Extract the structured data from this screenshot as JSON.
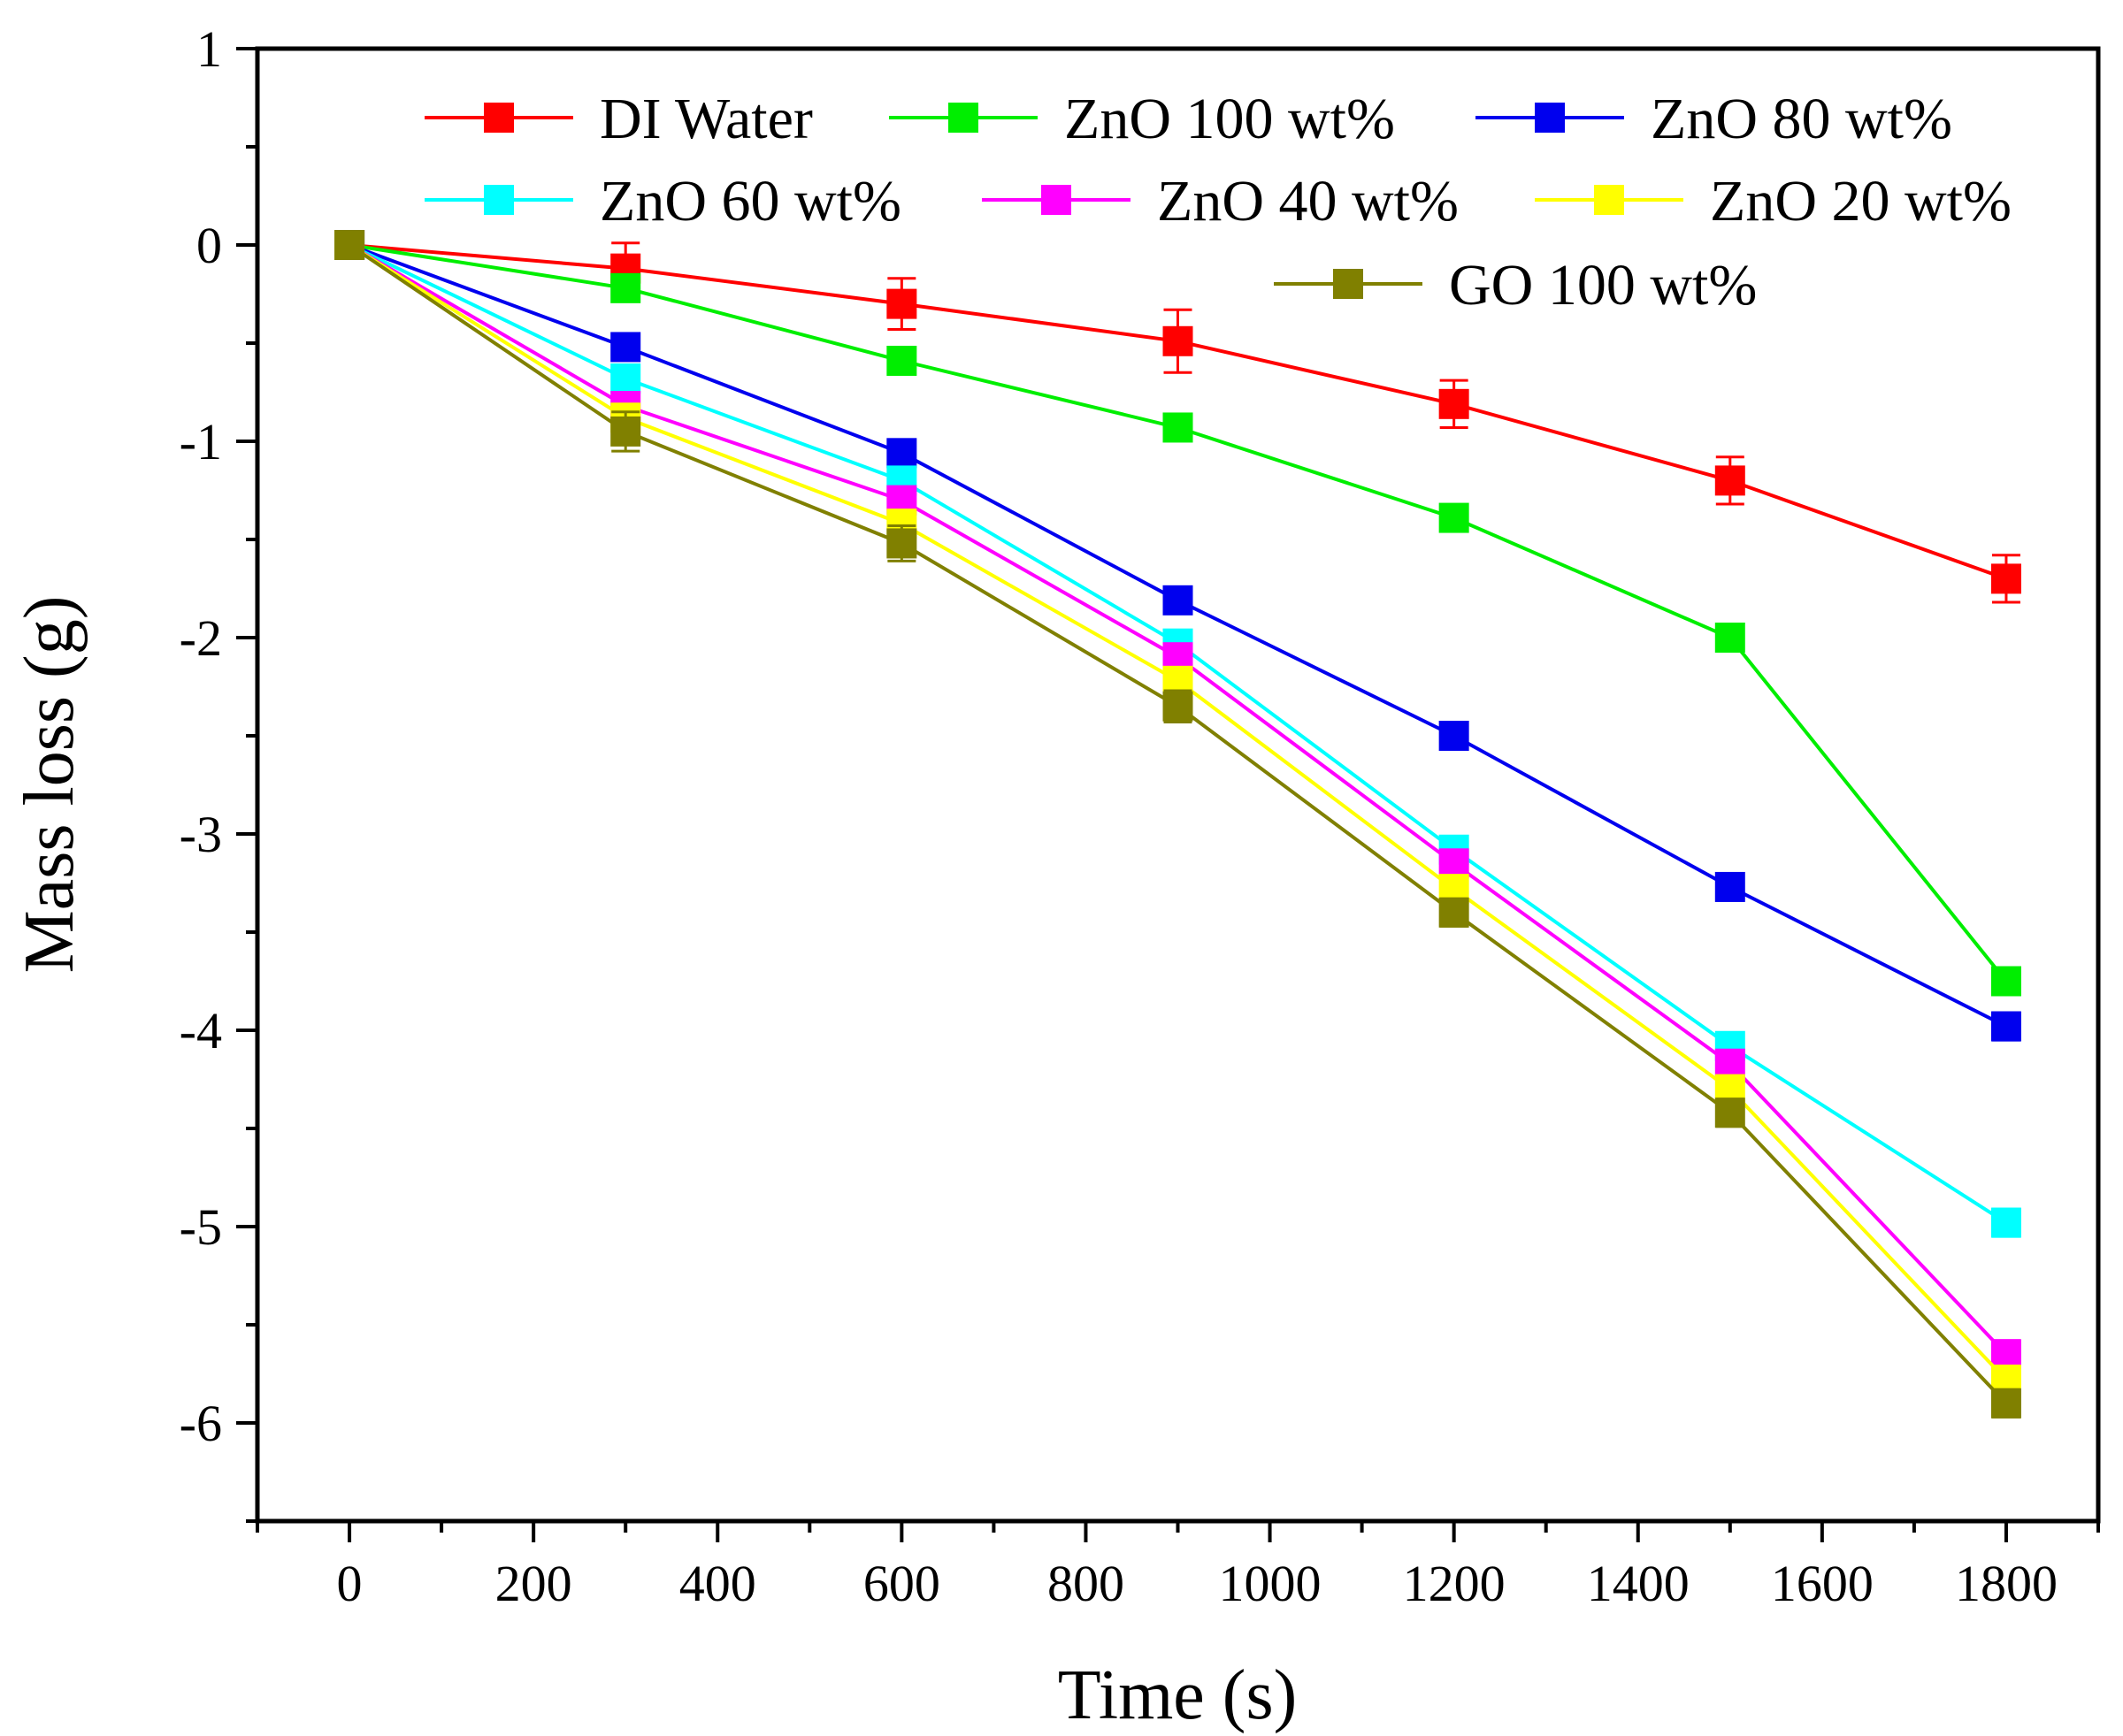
{
  "chart_data": {
    "type": "line",
    "title": "",
    "xlabel": "Time (s)",
    "ylabel": "Mass loss (g)",
    "xlim": [
      -100,
      1900
    ],
    "ylim": [
      -6.5,
      1
    ],
    "x_ticks": [
      0,
      200,
      400,
      600,
      800,
      1000,
      1200,
      1400,
      1600,
      1800
    ],
    "y_ticks": [
      1,
      0,
      -1,
      -2,
      -3,
      -4,
      -5,
      -6
    ],
    "x_tick_labels": [
      "0",
      "200",
      "400",
      "600",
      "800",
      "1000",
      "1200",
      "1400",
      "1600",
      "1800"
    ],
    "y_tick_labels": [
      "1",
      "0",
      "-1",
      "-2",
      "-3",
      "-4",
      "-5",
      "-6"
    ],
    "grid": false,
    "legend_position": "top-right",
    "x": [
      0,
      300,
      600,
      900,
      1200,
      1500,
      1800
    ],
    "series": [
      {
        "name": "DI Water",
        "color": "#ff0000",
        "values": [
          0,
          -0.12,
          -0.3,
          -0.49,
          -0.81,
          -1.2,
          -1.7
        ],
        "errors": [
          0.05,
          0.13,
          0.13,
          0.16,
          0.12,
          0.12,
          0.12
        ]
      },
      {
        "name": "ZnO 100 wt%",
        "color": "#00ee00",
        "values": [
          0,
          -0.22,
          -0.59,
          -0.93,
          -1.39,
          -2.0,
          -3.75
        ],
        "errors": [
          0.05,
          0.06,
          0.05,
          0.05,
          0.06,
          0.04,
          0.07
        ]
      },
      {
        "name": "ZnO 80 wt%",
        "color": "#0000ee",
        "values": [
          0,
          -0.52,
          -1.06,
          -1.81,
          -2.5,
          -3.27,
          -3.98
        ],
        "errors": [
          0.05,
          0.06,
          0.06,
          0.05,
          0.05,
          0.05,
          0.07
        ]
      },
      {
        "name": "ZnO 60 wt%",
        "color": "#00ffff",
        "values": [
          0,
          -0.68,
          -1.2,
          -2.03,
          -3.08,
          -4.08,
          -4.98
        ],
        "errors": [
          0.05,
          0.06,
          0.06,
          0.05,
          0.05,
          0.05,
          0.07
        ]
      },
      {
        "name": "ZnO 40 wt%",
        "color": "#ff00ff",
        "values": [
          0,
          -0.82,
          -1.3,
          -2.1,
          -3.15,
          -4.17,
          -5.65
        ],
        "errors": [
          0.05,
          0.06,
          0.06,
          0.05,
          0.05,
          0.05,
          0.07
        ]
      },
      {
        "name": "ZnO 20 wt%",
        "color": "#ffff00",
        "values": [
          0,
          -0.88,
          -1.42,
          -2.22,
          -3.28,
          -4.3,
          -5.78
        ],
        "errors": [
          0.05,
          0.07,
          0.07,
          0.06,
          0.06,
          0.06,
          0.07
        ]
      },
      {
        "name": "GO 100 wt%",
        "color": "#808000",
        "values": [
          0,
          -0.95,
          -1.52,
          -2.35,
          -3.4,
          -4.42,
          -5.9
        ],
        "errors": [
          0.05,
          0.1,
          0.09,
          0.08,
          0.07,
          0.07,
          0.07
        ]
      }
    ]
  }
}
